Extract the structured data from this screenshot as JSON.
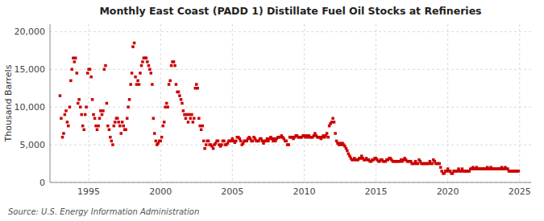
{
  "chart_data": {
    "type": "scatter",
    "title": "Monthly East Coast (PADD 1) Distillate Fuel Oil Stocks at Refineries",
    "y_label": "Thousand Barrels",
    "annotations": [
      "Source: U.S. Energy Information Administration"
    ],
    "color": "#CC0000",
    "marker": "square",
    "grid": true,
    "xlim": [
      1992.3,
      2025.8
    ],
    "xticks": [
      1995,
      2000,
      2005,
      2010,
      2015,
      2020,
      2025
    ],
    "ylim": [
      0,
      21000
    ],
    "yticks": [
      0,
      {
        "value": 5000,
        "label": "5,000"
      },
      {
        "value": 10000,
        "label": "10,000"
      },
      {
        "value": 15000,
        "label": "15,000"
      },
      {
        "value": 20000,
        "label": "20,000"
      }
    ],
    "x": [
      1993.0,
      1993.08,
      1993.17,
      1993.25,
      1993.33,
      1993.42,
      1993.5,
      1993.58,
      1993.67,
      1993.75,
      1993.83,
      1993.92,
      1994.0,
      1994.08,
      1994.17,
      1994.25,
      1994.33,
      1994.42,
      1994.5,
      1994.58,
      1994.67,
      1994.75,
      1994.83,
      1994.92,
      1995.0,
      1995.08,
      1995.17,
      1995.25,
      1995.33,
      1995.42,
      1995.5,
      1995.58,
      1995.67,
      1995.75,
      1995.83,
      1995.92,
      1996.0,
      1996.08,
      1996.17,
      1996.25,
      1996.33,
      1996.42,
      1996.5,
      1996.58,
      1996.67,
      1996.75,
      1996.83,
      1996.92,
      1997.0,
      1997.08,
      1997.17,
      1997.25,
      1997.33,
      1997.42,
      1997.5,
      1997.58,
      1997.67,
      1997.75,
      1997.83,
      1997.92,
      1998.0,
      1998.08,
      1998.17,
      1998.25,
      1998.33,
      1998.42,
      1998.5,
      1998.58,
      1998.67,
      1998.75,
      1998.83,
      1998.92,
      1999.0,
      1999.08,
      1999.17,
      1999.25,
      1999.33,
      1999.42,
      1999.5,
      1999.58,
      1999.67,
      1999.75,
      1999.83,
      1999.92,
      2000.0,
      2000.08,
      2000.17,
      2000.25,
      2000.33,
      2000.42,
      2000.5,
      2000.58,
      2000.67,
      2000.75,
      2000.83,
      2000.92,
      2001.0,
      2001.08,
      2001.17,
      2001.25,
      2001.33,
      2001.42,
      2001.5,
      2001.58,
      2001.67,
      2001.75,
      2001.83,
      2001.92,
      2002.0,
      2002.08,
      2002.17,
      2002.25,
      2002.33,
      2002.42,
      2002.5,
      2002.58,
      2002.67,
      2002.75,
      2002.83,
      2002.92,
      2003.0,
      2003.08,
      2003.17,
      2003.25,
      2003.33,
      2003.42,
      2003.5,
      2003.58,
      2003.67,
      2003.75,
      2003.83,
      2003.92,
      2004.0,
      2004.08,
      2004.17,
      2004.25,
      2004.33,
      2004.42,
      2004.5,
      2004.58,
      2004.67,
      2004.75,
      2004.83,
      2004.92,
      2005.0,
      2005.08,
      2005.17,
      2005.25,
      2005.33,
      2005.42,
      2005.5,
      2005.58,
      2005.67,
      2005.75,
      2005.83,
      2005.92,
      2006.0,
      2006.08,
      2006.17,
      2006.25,
      2006.33,
      2006.42,
      2006.5,
      2006.58,
      2006.67,
      2006.75,
      2006.83,
      2006.92,
      2007.0,
      2007.08,
      2007.17,
      2007.25,
      2007.33,
      2007.42,
      2007.5,
      2007.58,
      2007.67,
      2007.75,
      2007.83,
      2007.92,
      2008.0,
      2008.08,
      2008.17,
      2008.25,
      2008.33,
      2008.42,
      2008.5,
      2008.58,
      2008.67,
      2008.75,
      2008.83,
      2008.92,
      2009.0,
      2009.08,
      2009.17,
      2009.25,
      2009.33,
      2009.42,
      2009.5,
      2009.58,
      2009.67,
      2009.75,
      2009.83,
      2009.92,
      2010.0,
      2010.08,
      2010.17,
      2010.25,
      2010.33,
      2010.42,
      2010.5,
      2010.58,
      2010.67,
      2010.75,
      2010.83,
      2010.92,
      2011.0,
      2011.08,
      2011.17,
      2011.25,
      2011.33,
      2011.42,
      2011.5,
      2011.58,
      2011.67,
      2011.75,
      2011.83,
      2011.92,
      2012.0,
      2012.08,
      2012.17,
      2012.25,
      2012.33,
      2012.42,
      2012.5,
      2012.58,
      2012.67,
      2012.75,
      2012.83,
      2012.92,
      2013.0,
      2013.08,
      2013.17,
      2013.25,
      2013.33,
      2013.42,
      2013.5,
      2013.58,
      2013.67,
      2013.75,
      2013.83,
      2013.92,
      2014.0,
      2014.08,
      2014.17,
      2014.25,
      2014.33,
      2014.42,
      2014.5,
      2014.58,
      2014.67,
      2014.75,
      2014.83,
      2014.92,
      2015.0,
      2015.08,
      2015.17,
      2015.25,
      2015.33,
      2015.42,
      2015.5,
      2015.58,
      2015.67,
      2015.75,
      2015.83,
      2015.92,
      2016.0,
      2016.08,
      2016.17,
      2016.25,
      2016.33,
      2016.42,
      2016.5,
      2016.58,
      2016.67,
      2016.75,
      2016.83,
      2016.92,
      2017.0,
      2017.08,
      2017.17,
      2017.25,
      2017.33,
      2017.42,
      2017.5,
      2017.58,
      2017.67,
      2017.75,
      2017.83,
      2017.92,
      2018.0,
      2018.08,
      2018.17,
      2018.25,
      2018.33,
      2018.42,
      2018.5,
      2018.58,
      2018.67,
      2018.75,
      2018.83,
      2018.92,
      2019.0,
      2019.08,
      2019.17,
      2019.25,
      2019.33,
      2019.42,
      2019.5,
      2019.58,
      2019.67,
      2019.75,
      2019.83,
      2019.92,
      2020.0,
      2020.08,
      2020.17,
      2020.25,
      2020.33,
      2020.42,
      2020.5,
      2020.58,
      2020.67,
      2020.75,
      2020.83,
      2020.92,
      2021.0,
      2021.08,
      2021.17,
      2021.25,
      2021.33,
      2021.42,
      2021.5,
      2021.58,
      2021.67,
      2021.75,
      2021.83,
      2021.92,
      2022.0,
      2022.08,
      2022.17,
      2022.25,
      2022.33,
      2022.42,
      2022.5,
      2022.58,
      2022.67,
      2022.75,
      2022.83,
      2022.92,
      2023.0,
      2023.08,
      2023.17,
      2023.25,
      2023.33,
      2023.42,
      2023.5,
      2023.58,
      2023.67,
      2023.75,
      2023.83,
      2023.92,
      2024.0,
      2024.08,
      2024.17,
      2024.25,
      2024.33,
      2024.42,
      2024.5,
      2024.58,
      2024.67,
      2024.75,
      2024.83,
      2024.92
    ],
    "values": [
      11500,
      8500,
      6000,
      6500,
      9000,
      9500,
      8000,
      7500,
      10000,
      13500,
      15000,
      16500,
      16000,
      16500,
      14500,
      10500,
      11000,
      10000,
      9000,
      7500,
      7000,
      9000,
      10000,
      14500,
      15000,
      15000,
      14000,
      11000,
      9000,
      8500,
      7500,
      7000,
      7500,
      8500,
      9500,
      9000,
      9500,
      15000,
      15500,
      10500,
      7500,
      7000,
      6000,
      5500,
      5000,
      7500,
      8000,
      8500,
      8500,
      8000,
      7500,
      6500,
      8000,
      7500,
      7000,
      7000,
      8500,
      10000,
      11000,
      13000,
      14500,
      18000,
      18500,
      14000,
      13000,
      13500,
      13000,
      14500,
      15500,
      16000,
      16500,
      16500,
      16500,
      16000,
      15500,
      15000,
      14500,
      13000,
      8500,
      6500,
      5500,
      5000,
      5200,
      5500,
      5500,
      6000,
      7500,
      8000,
      10000,
      10500,
      10000,
      13000,
      13500,
      15500,
      16000,
      16000,
      15500,
      13000,
      12000,
      12000,
      11500,
      11000,
      10500,
      9500,
      9000,
      8500,
      9000,
      8000,
      9000,
      8500,
      9000,
      8000,
      8500,
      12500,
      13000,
      12500,
      8500,
      7500,
      7000,
      7500,
      5500,
      4500,
      5000,
      5500,
      5500,
      5000,
      5000,
      4800,
      4500,
      5000,
      5200,
      5500,
      5500,
      5000,
      4800,
      5000,
      5500,
      5500,
      5000,
      5000,
      5200,
      5500,
      5500,
      5500,
      5800,
      5500,
      5300,
      5500,
      6000,
      6000,
      5800,
      5500,
      5000,
      5200,
      5500,
      5500,
      5500,
      5800,
      6000,
      5800,
      5500,
      5500,
      6000,
      5800,
      5500,
      5500,
      5500,
      5800,
      5800,
      5500,
      5200,
      5500,
      5500,
      5800,
      5500,
      5800,
      6000,
      5800,
      5500,
      5800,
      5500,
      5800,
      6000,
      6000,
      6000,
      6200,
      6000,
      5800,
      5500,
      5500,
      5000,
      5000,
      6000,
      6000,
      6000,
      5800,
      6000,
      6200,
      6200,
      6000,
      6000,
      6000,
      6000,
      6200,
      6200,
      6000,
      6200,
      6000,
      6200,
      6000,
      6000,
      6000,
      6200,
      6500,
      6200,
      6000,
      6000,
      6000,
      5800,
      6000,
      6200,
      6000,
      6200,
      6500,
      6000,
      7500,
      7800,
      8000,
      8500,
      8000,
      6500,
      5500,
      5200,
      5000,
      5200,
      5000,
      5200,
      5000,
      4800,
      4500,
      4200,
      3800,
      3500,
      3200,
      3000,
      3000,
      3200,
      3000,
      3000,
      3000,
      3200,
      3200,
      3500,
      3200,
      3000,
      3000,
      3200,
      3000,
      3000,
      2800,
      2800,
      3000,
      3000,
      3200,
      3200,
      3000,
      2800,
      2800,
      3000,
      3000,
      2800,
      2800,
      2800,
      3000,
      3000,
      3200,
      3200,
      3000,
      2800,
      2800,
      2800,
      2800,
      2800,
      2800,
      2800,
      3000,
      2800,
      3000,
      3200,
      3000,
      2800,
      2800,
      2800,
      2800,
      2500,
      2500,
      2500,
      2800,
      2500,
      2500,
      3000,
      2800,
      2500,
      2500,
      2500,
      2500,
      2500,
      2500,
      2500,
      2800,
      2500,
      2500,
      3000,
      2800,
      2500,
      2500,
      2500,
      2500,
      2000,
      1500,
      1200,
      1200,
      1500,
      1500,
      1800,
      1500,
      1500,
      1200,
      1200,
      1500,
      1500,
      1500,
      1500,
      1800,
      1500,
      1500,
      1800,
      1500,
      1500,
      1500,
      1500,
      1500,
      1500,
      1800,
      1800,
      2000,
      1800,
      1800,
      2000,
      1800,
      1800,
      1800,
      1800,
      1800,
      1800,
      1800,
      1800,
      2000,
      1800,
      1800,
      2000,
      1800,
      1800,
      1800,
      1800,
      1800,
      1800,
      1800,
      1800,
      2000,
      1800,
      1800,
      2000,
      1800,
      1800,
      1500,
      1500,
      1500,
      1500,
      1500,
      1500,
      1500,
      1500,
      1500
    ]
  }
}
